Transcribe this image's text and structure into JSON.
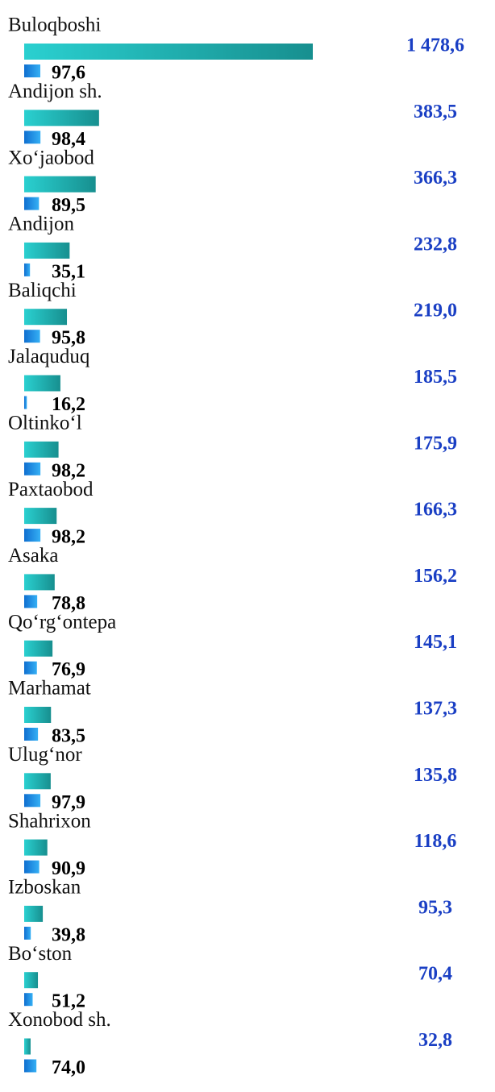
{
  "chart_data": {
    "type": "bar",
    "categories": [
      "Buloqboshi",
      "Andijon sh.",
      "Xo‘jaobod",
      "Andijon",
      "Baliqchi",
      "Jalaquduq",
      "Oltinko‘l",
      "Paxtaobod",
      "Asaka",
      "Qo‘rg‘ontepa",
      "Marhamat",
      "Ulug‘nor",
      "Shahrixon",
      "Izboskan",
      "Bo‘ston",
      "Xonobod sh."
    ],
    "series": [
      {
        "color": "#1fb3b3",
        "values": [
          1478.6,
          383.5,
          366.3,
          232.8,
          219.0,
          185.5,
          175.9,
          166.3,
          156.2,
          145.1,
          137.3,
          135.8,
          118.6,
          95.3,
          70.4,
          32.8
        ],
        "value_labels": [
          "1 478,6",
          "383,5",
          "366,3",
          "232,8",
          "219,0",
          "185,5",
          "175,9",
          "166,3",
          "156,2",
          "145,1",
          "137,3",
          "135,8",
          "118,6",
          "95,3",
          "70,4",
          "32,8"
        ]
      },
      {
        "color": "#1a8fe0",
        "values": [
          97.6,
          98.4,
          89.5,
          35.1,
          95.8,
          16.2,
          98.2,
          98.2,
          78.8,
          76.9,
          83.5,
          97.9,
          90.9,
          39.8,
          51.2,
          74.0
        ],
        "value_labels": [
          "97,6",
          "98,4",
          "89,5",
          "35,1",
          "95,8",
          "16,2",
          "98,2",
          "98,2",
          "78,8",
          "76,9",
          "83,5",
          "97,9",
          "90,9",
          "39,8",
          "51,2",
          "74,0"
        ]
      }
    ]
  }
}
